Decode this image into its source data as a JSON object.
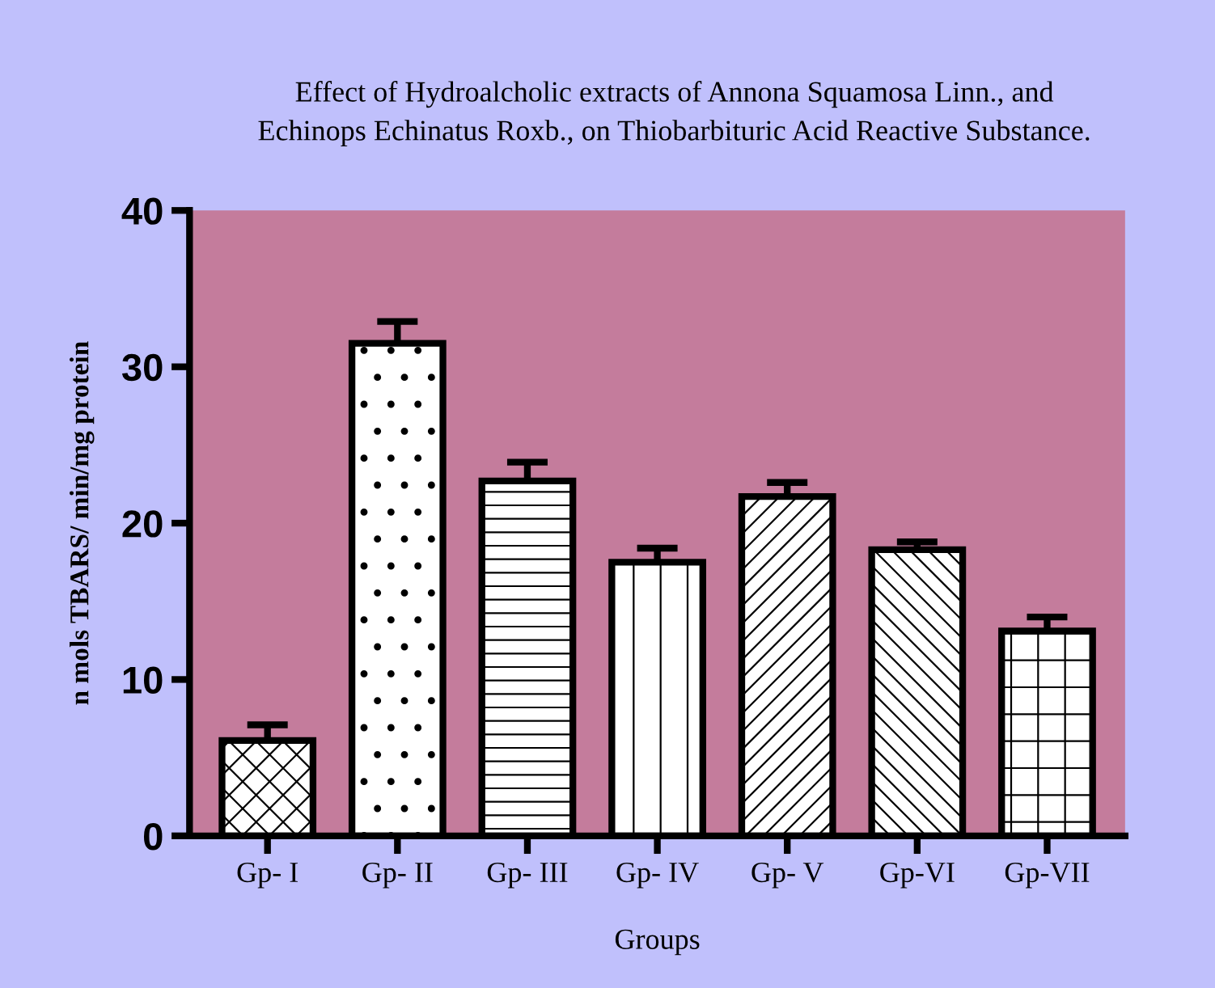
{
  "chart_data": {
    "type": "bar",
    "title": "Effect of Hydroalcholic extracts of Annona Squamosa Linn., and\nEchinops Echinatus Roxb., on Thiobarbituric Acid Reactive Substance.",
    "xlabel": "Groups",
    "ylabel": "n mols TBARS/ min/mg protein",
    "categories": [
      "Gp- I",
      "Gp- II",
      "Gp- III",
      "Gp- IV",
      "Gp- V",
      "Gp-VI",
      "Gp-VII"
    ],
    "values": [
      6.1,
      31.5,
      22.7,
      17.5,
      21.7,
      18.3,
      13.1
    ],
    "errors": [
      1.0,
      1.4,
      1.2,
      0.9,
      0.9,
      0.5,
      0.9
    ],
    "color": "#000000",
    "ylim": [
      0,
      40
    ],
    "yticks": [
      0,
      10,
      20,
      30,
      40
    ],
    "grid": false
  }
}
